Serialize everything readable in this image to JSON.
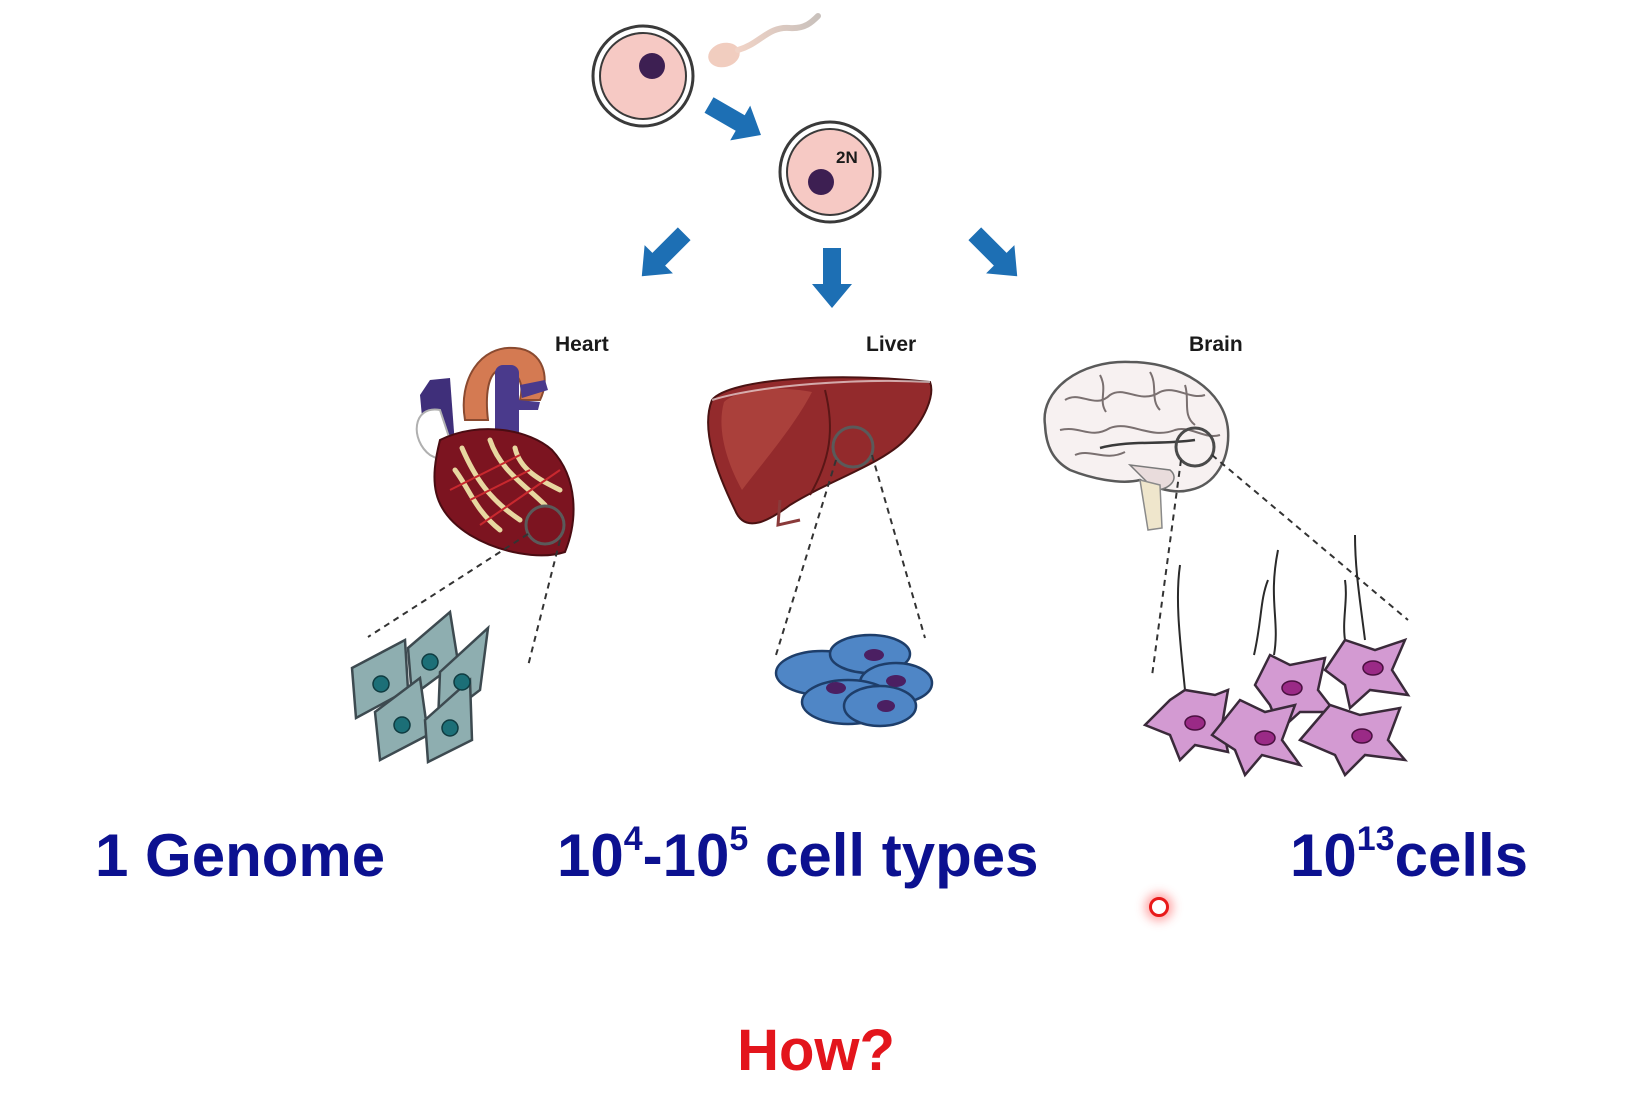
{
  "fertilization": {
    "zygote_label": "2N"
  },
  "organs": [
    {
      "label": "Heart"
    },
    {
      "label": "Liver"
    },
    {
      "label": "Brain"
    }
  ],
  "statements": {
    "genome": "1 Genome",
    "types_base1": "10",
    "types_exp1": "4",
    "types_dash": "-10",
    "types_exp2": "5",
    "types_suffix": " cell types",
    "cells_base": "10",
    "cells_exp": "13",
    "cells_suffix": "cells"
  },
  "question": "How?",
  "colors": {
    "statement_text": "#0c1190",
    "question_text": "#e3151c",
    "arrow": "#1d6fb4",
    "cell_cytoplasm": "#f6c9c4",
    "nucleus": "#3d1f52",
    "pointer": "#e81a1a"
  },
  "icons": [
    "egg-cell-icon",
    "sperm-icon",
    "zygote-icon",
    "heart-icon",
    "liver-icon",
    "brain-icon",
    "cardiomyocyte-icon",
    "hepatocyte-icon",
    "neuron-icon",
    "arrow-icon"
  ]
}
